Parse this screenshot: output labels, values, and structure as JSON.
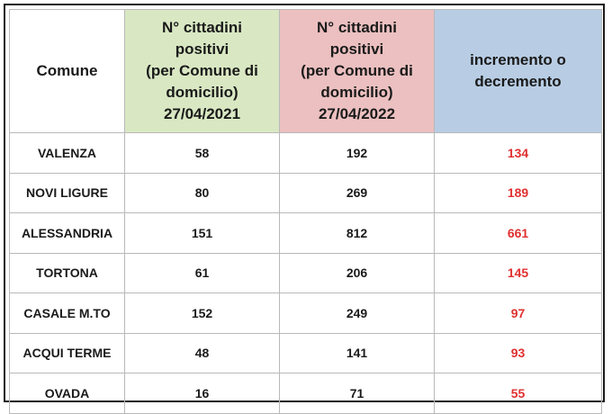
{
  "table": {
    "headers": [
      "Comune",
      "N° cittadini\npositivi\n(per Comune di\ndomicilio)\n27/04/2021",
      "N° cittadini\npositivi\n(per Comune di\ndomicilio)\n27/04/2022",
      "incremento o\ndecremento"
    ],
    "rows": [
      {
        "comune": "VALENZA",
        "v2021": "58",
        "v2022": "192",
        "delta": "134"
      },
      {
        "comune": "NOVI LIGURE",
        "v2021": "80",
        "v2022": "269",
        "delta": "189"
      },
      {
        "comune": "ALESSANDRIA",
        "v2021": "151",
        "v2022": "812",
        "delta": "661"
      },
      {
        "comune": "TORTONA",
        "v2021": "61",
        "v2022": "206",
        "delta": "145"
      },
      {
        "comune": "CASALE M.TO",
        "v2021": "152",
        "v2022": "249",
        "delta": "97"
      },
      {
        "comune": "ACQUI TERME",
        "v2021": "48",
        "v2022": "141",
        "delta": "93"
      },
      {
        "comune": "OVADA",
        "v2021": "16",
        "v2022": "71",
        "delta": "55"
      }
    ]
  },
  "colors": {
    "header_2021_bg": "#d9e8c3",
    "header_2022_bg": "#ecc0c0",
    "header_delta_bg": "#b8cde4",
    "delta_text": "#e03030"
  }
}
